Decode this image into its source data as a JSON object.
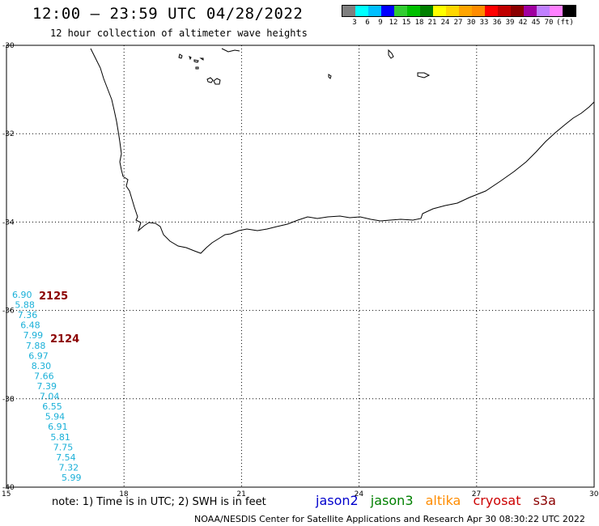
{
  "header": {
    "title": "12:00 – 23:59 UTC 04/28/2022",
    "subtitle": "12 hour collection of altimeter wave heights"
  },
  "legend": {
    "colors": [
      "#7f7f7f",
      "#00ffff",
      "#00bfff",
      "#0000ff",
      "#32cd32",
      "#00c000",
      "#008000",
      "#ffff00",
      "#ffd700",
      "#ffa500",
      "#ff8c00",
      "#ff0000",
      "#c00000",
      "#8b0000",
      "#a000a0",
      "#c080ff",
      "#ff80ff",
      "#000000"
    ],
    "labels": [
      "3",
      "6",
      "9",
      "12",
      "15",
      "18",
      "21",
      "24",
      "27",
      "30",
      "33",
      "36",
      "39",
      "42",
      "45",
      "70",
      "(ft)"
    ]
  },
  "map": {
    "lon_labels": [
      "15",
      "18",
      "21",
      "24",
      "27",
      "30"
    ],
    "lat_labels": [
      "-30",
      "-32",
      "-34",
      "-36",
      "-38",
      "-40"
    ],
    "lon_range": [
      15,
      30
    ],
    "lat_range": [
      -40,
      -30
    ]
  },
  "swh_values": [
    "6.90",
    "5.88",
    "7.36",
    "6.48",
    "7.99",
    "7.88",
    "6.97",
    "8.30",
    "7.66",
    "7.39",
    "7.04",
    "6.55",
    "5.94",
    "6.91",
    "5.81",
    "7.75",
    "7.54",
    "7.32",
    "5.99"
  ],
  "passes": [
    "2125",
    "2124"
  ],
  "footer": {
    "note": "note: 1) Time is in UTC; 2) SWH is in feet",
    "satellites": [
      {
        "name": "jason2",
        "color": "#0000cc"
      },
      {
        "name": "jason3",
        "color": "#008000"
      },
      {
        "name": "altika",
        "color": "#ff8c00"
      },
      {
        "name": "cryosat",
        "color": "#cc0000"
      },
      {
        "name": "s3a",
        "color": "#8b0000"
      }
    ],
    "credit": "NOAA/NESDIS Center for Satellite Applications and Research   Apr 30 08:30:22 UTC 2022"
  }
}
